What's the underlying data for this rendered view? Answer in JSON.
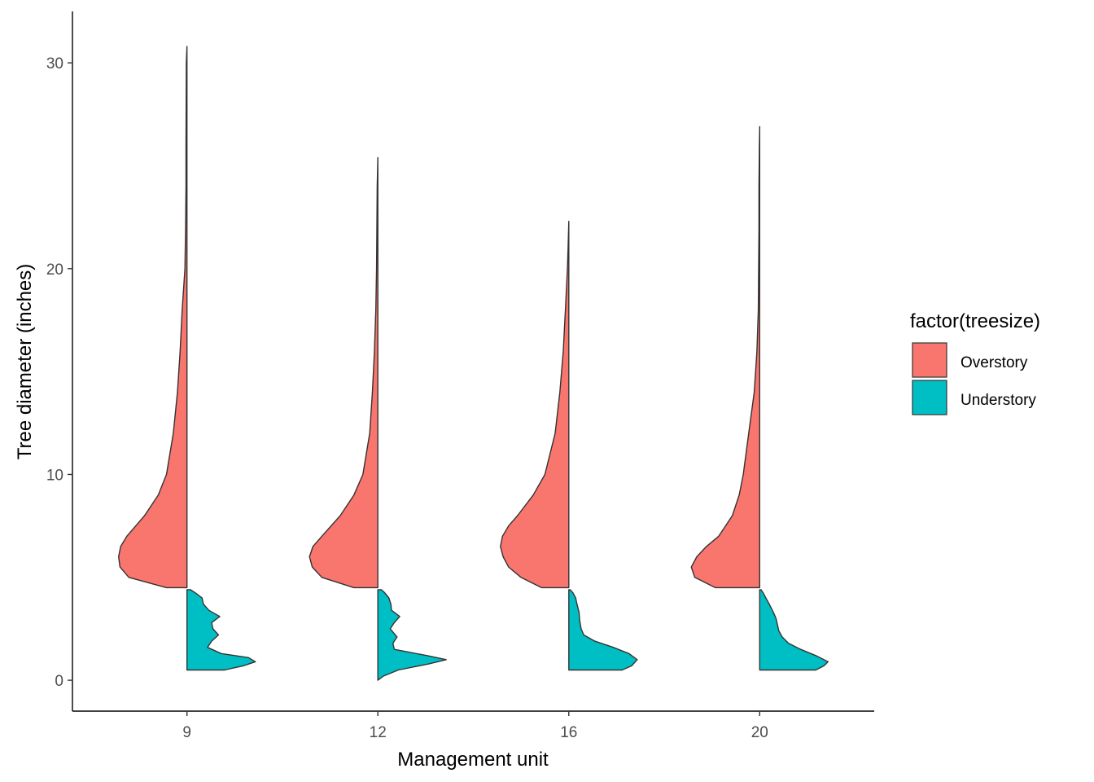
{
  "chart_data": {
    "type": "split-violin",
    "xlabel": "Management unit",
    "ylabel": "Tree diameter (inches)",
    "ylim": [
      -1.5,
      32.5
    ],
    "yticks": [
      0,
      10,
      20,
      30
    ],
    "grid": false,
    "legend": {
      "title": "factor(treesize)",
      "placement": "right",
      "entries": [
        {
          "label": "Overstory",
          "color": "#F8766D"
        },
        {
          "label": "Understory",
          "color": "#00BFC4"
        }
      ]
    },
    "categories": [
      "9",
      "12",
      "16",
      "20"
    ],
    "series": [
      {
        "name": "Overstory",
        "color": "#F8766D",
        "side": "left",
        "groups": [
          {
            "category": "9",
            "profile": [
              [
                4.5,
                0.3
              ],
              [
                5.0,
                0.85
              ],
              [
                5.5,
                0.98
              ],
              [
                6.0,
                1.0
              ],
              [
                6.5,
                0.97
              ],
              [
                7.0,
                0.88
              ],
              [
                8.0,
                0.62
              ],
              [
                9.0,
                0.42
              ],
              [
                10.0,
                0.3
              ],
              [
                12.0,
                0.2
              ],
              [
                14.0,
                0.14
              ],
              [
                16.0,
                0.1
              ],
              [
                18.0,
                0.07
              ],
              [
                20.0,
                0.03
              ],
              [
                22.0,
                0.02
              ],
              [
                24.0,
                0.015
              ],
              [
                26.0,
                0.015
              ],
              [
                28.0,
                0.012
              ],
              [
                30.0,
                0.01
              ],
              [
                30.8,
                0.0
              ]
            ]
          },
          {
            "category": "12",
            "profile": [
              [
                4.5,
                0.35
              ],
              [
                5.0,
                0.82
              ],
              [
                5.5,
                0.96
              ],
              [
                6.0,
                1.0
              ],
              [
                6.5,
                0.95
              ],
              [
                7.0,
                0.82
              ],
              [
                8.0,
                0.55
              ],
              [
                9.0,
                0.35
              ],
              [
                10.0,
                0.22
              ],
              [
                12.0,
                0.12
              ],
              [
                14.0,
                0.08
              ],
              [
                16.0,
                0.05
              ],
              [
                18.0,
                0.03
              ],
              [
                20.0,
                0.02
              ],
              [
                22.0,
                0.015
              ],
              [
                24.0,
                0.01
              ],
              [
                25.4,
                0.0
              ]
            ]
          },
          {
            "category": "16",
            "profile": [
              [
                4.5,
                0.4
              ],
              [
                5.0,
                0.7
              ],
              [
                5.5,
                0.88
              ],
              [
                6.0,
                0.96
              ],
              [
                6.5,
                1.0
              ],
              [
                7.0,
                0.97
              ],
              [
                7.5,
                0.88
              ],
              [
                8.0,
                0.75
              ],
              [
                9.0,
                0.52
              ],
              [
                10.0,
                0.35
              ],
              [
                12.0,
                0.2
              ],
              [
                14.0,
                0.13
              ],
              [
                16.0,
                0.08
              ],
              [
                18.0,
                0.05
              ],
              [
                20.0,
                0.02
              ],
              [
                21.0,
                0.01
              ],
              [
                22.3,
                0.0
              ]
            ]
          },
          {
            "category": "20",
            "profile": [
              [
                4.5,
                0.65
              ],
              [
                5.0,
                0.95
              ],
              [
                5.5,
                1.0
              ],
              [
                6.0,
                0.92
              ],
              [
                6.5,
                0.78
              ],
              [
                7.0,
                0.6
              ],
              [
                8.0,
                0.4
              ],
              [
                9.0,
                0.3
              ],
              [
                10.0,
                0.24
              ],
              [
                12.0,
                0.16
              ],
              [
                14.0,
                0.08
              ],
              [
                16.0,
                0.04
              ],
              [
                18.0,
                0.02
              ],
              [
                20.0,
                0.015
              ],
              [
                22.0,
                0.01
              ],
              [
                24.0,
                0.01
              ],
              [
                26.0,
                0.005
              ],
              [
                26.9,
                0.0
              ]
            ]
          }
        ]
      },
      {
        "name": "Understory",
        "color": "#00BFC4",
        "side": "right",
        "groups": [
          {
            "category": "9",
            "profile": [
              [
                0.5,
                0.55
              ],
              [
                0.7,
                0.82
              ],
              [
                0.9,
                1.0
              ],
              [
                1.1,
                0.9
              ],
              [
                1.3,
                0.5
              ],
              [
                1.6,
                0.3
              ],
              [
                1.9,
                0.36
              ],
              [
                2.2,
                0.46
              ],
              [
                2.5,
                0.38
              ],
              [
                2.8,
                0.36
              ],
              [
                3.1,
                0.48
              ],
              [
                3.4,
                0.32
              ],
              [
                3.7,
                0.24
              ],
              [
                4.0,
                0.22
              ],
              [
                4.25,
                0.12
              ],
              [
                4.4,
                0.05
              ]
            ]
          },
          {
            "category": "12",
            "profile": [
              [
                0.0,
                0.0
              ],
              [
                0.2,
                0.08
              ],
              [
                0.5,
                0.3
              ],
              [
                0.8,
                0.75
              ],
              [
                1.0,
                1.0
              ],
              [
                1.2,
                0.72
              ],
              [
                1.5,
                0.24
              ],
              [
                1.8,
                0.22
              ],
              [
                2.1,
                0.28
              ],
              [
                2.5,
                0.18
              ],
              [
                2.8,
                0.24
              ],
              [
                3.1,
                0.32
              ],
              [
                3.4,
                0.2
              ],
              [
                3.7,
                0.19
              ],
              [
                4.0,
                0.16
              ],
              [
                4.25,
                0.1
              ],
              [
                4.4,
                0.05
              ]
            ]
          },
          {
            "category": "16",
            "profile": [
              [
                0.5,
                0.78
              ],
              [
                0.7,
                0.92
              ],
              [
                1.0,
                1.0
              ],
              [
                1.3,
                0.88
              ],
              [
                1.6,
                0.65
              ],
              [
                1.9,
                0.38
              ],
              [
                2.2,
                0.22
              ],
              [
                2.5,
                0.18
              ],
              [
                2.9,
                0.16
              ],
              [
                3.3,
                0.15
              ],
              [
                3.7,
                0.12
              ],
              [
                4.0,
                0.1
              ],
              [
                4.25,
                0.06
              ],
              [
                4.4,
                0.02
              ]
            ]
          },
          {
            "category": "20",
            "profile": [
              [
                0.5,
                0.82
              ],
              [
                0.7,
                0.94
              ],
              [
                0.9,
                1.0
              ],
              [
                1.2,
                0.82
              ],
              [
                1.5,
                0.6
              ],
              [
                1.8,
                0.42
              ],
              [
                2.1,
                0.33
              ],
              [
                2.4,
                0.28
              ],
              [
                2.7,
                0.26
              ],
              [
                3.0,
                0.24
              ],
              [
                3.3,
                0.2
              ],
              [
                3.7,
                0.14
              ],
              [
                4.0,
                0.09
              ],
              [
                4.25,
                0.05
              ],
              [
                4.4,
                0.02
              ]
            ]
          }
        ]
      }
    ]
  }
}
